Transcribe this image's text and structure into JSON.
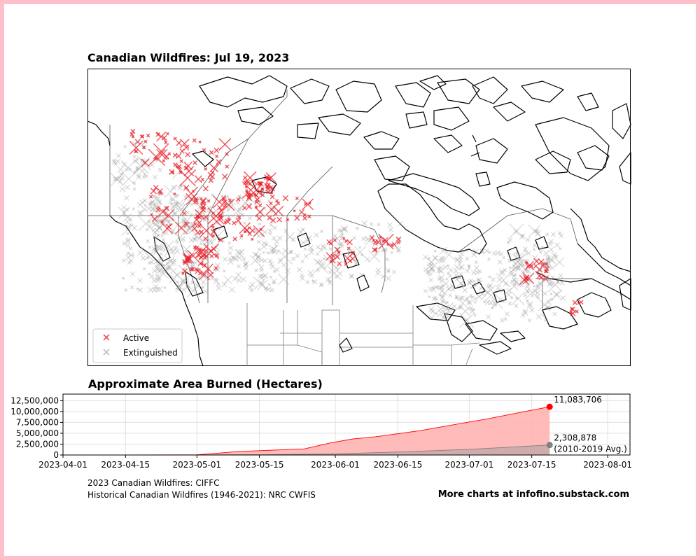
{
  "map": {
    "title": "Canadian Wildfires: Jul 19, 2023",
    "legend": {
      "active_label": "Active",
      "extinguished_label": "Extinguished",
      "active_color": "#e8202a",
      "extinguished_color": "#9e9e9e",
      "placement": "lower-left"
    }
  },
  "chart_data": {
    "type": "area",
    "title": "Approximate Area Burned (Hectares)",
    "xlabel": "",
    "ylabel": "",
    "x_axis": "date",
    "xlim": [
      "2023-04-01",
      "2023-08-06"
    ],
    "ylim": [
      0,
      14000000
    ],
    "x_ticks": [
      "2023-04-01",
      "2023-04-15",
      "2023-05-01",
      "2023-05-15",
      "2023-06-01",
      "2023-06-15",
      "2023-07-01",
      "2023-07-15",
      "2023-08-01"
    ],
    "y_ticks": [
      0,
      2500000,
      5000000,
      7500000,
      10000000,
      12500000
    ],
    "y_tick_labels": [
      "0",
      "2,500,000",
      "5,000,000",
      "7,500,000",
      "10,000,000",
      "12,500,000"
    ],
    "grid": true,
    "series": [
      {
        "color": "#ff0000",
        "fill": "#ffb3b3",
        "points": [
          [
            "2023-04-01",
            0
          ],
          [
            "2023-04-15",
            5000
          ],
          [
            "2023-05-01",
            40000
          ],
          [
            "2023-05-05",
            350000
          ],
          [
            "2023-05-10",
            800000
          ],
          [
            "2023-05-15",
            1000000
          ],
          [
            "2023-05-20",
            1200000
          ],
          [
            "2023-05-25",
            1400000
          ],
          [
            "2023-05-31",
            2800000
          ],
          [
            "2023-06-05",
            3700000
          ],
          [
            "2023-06-10",
            4200000
          ],
          [
            "2023-06-15",
            4900000
          ],
          [
            "2023-06-20",
            5600000
          ],
          [
            "2023-06-25",
            6500000
          ],
          [
            "2023-07-01",
            7600000
          ],
          [
            "2023-07-05",
            8300000
          ],
          [
            "2023-07-10",
            9300000
          ],
          [
            "2023-07-15",
            10300000
          ],
          [
            "2023-07-19",
            11083706
          ]
        ]
      },
      {
        "color": "#808080",
        "fill": "#c8a8a8",
        "points": [
          [
            "2023-04-01",
            0
          ],
          [
            "2023-04-15",
            2000
          ],
          [
            "2023-05-01",
            10000
          ],
          [
            "2023-05-15",
            60000
          ],
          [
            "2023-06-01",
            250000
          ],
          [
            "2023-06-15",
            700000
          ],
          [
            "2023-07-01",
            1300000
          ],
          [
            "2023-07-10",
            1800000
          ],
          [
            "2023-07-19",
            2308878
          ]
        ]
      }
    ],
    "annotations": [
      {
        "value_text": "11,083,706",
        "date": "2023-07-19",
        "value": 11083706,
        "color": "#ff0000"
      },
      {
        "value_text": "2,308,878",
        "sub_text": "(2010-2019 Avg.)",
        "date": "2023-07-19",
        "value": 2308878,
        "color": "#808080"
      }
    ]
  },
  "footer": {
    "source_line1": "2023 Canadian Wildfires: CIFFC",
    "source_line2": "Historical Canadian Wildfires (1946-2021): NRC CWFIS",
    "credit": "More charts at infofino.substack.com"
  },
  "colors": {
    "frame": "#ffc0cb",
    "active": "#e8202a",
    "extinguished": "#9e9e9e"
  }
}
